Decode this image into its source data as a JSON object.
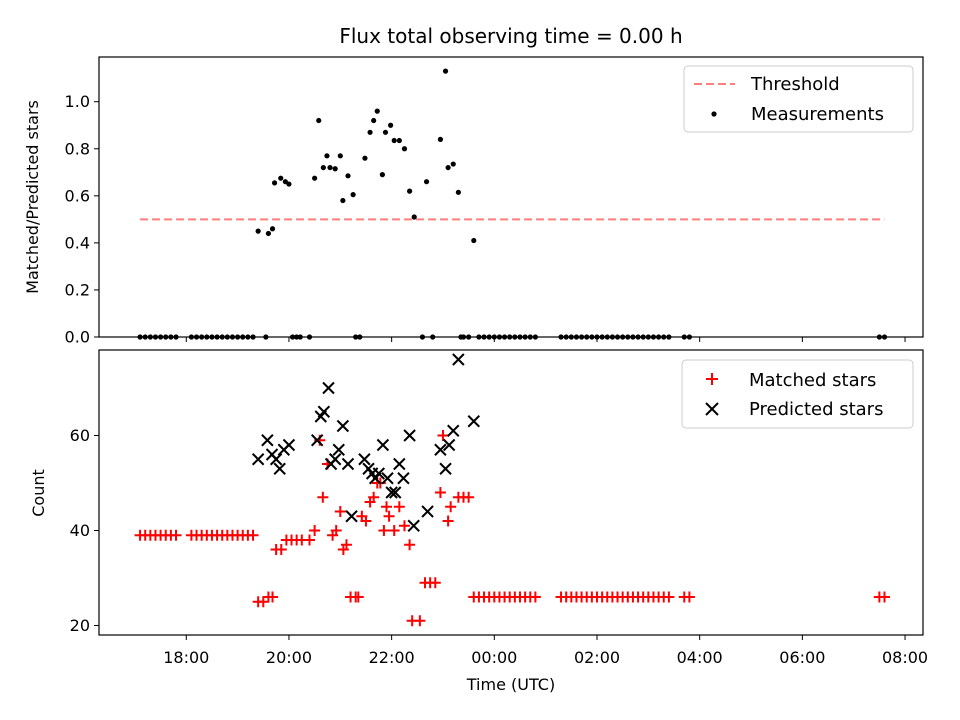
{
  "chart_data": [
    {
      "type": "scatter",
      "title": "Flux total observing time = 0.00 h",
      "xlabel": "",
      "ylabel": "Matched/Predicted stars",
      "xlim": [
        16.3,
        32.35
      ],
      "ylim": [
        0.0,
        1.19
      ],
      "yticks": [
        0.0,
        0.2,
        0.4,
        0.6,
        0.8,
        1.0
      ],
      "ytick_labels": [
        "0.0",
        "0.2",
        "0.4",
        "0.6",
        "0.8",
        "1.0"
      ],
      "legend_position": "upper right",
      "threshold": {
        "name": "Threshold",
        "value": 0.5,
        "x_range": [
          17.1,
          31.6
        ],
        "color": "#ff7f7f"
      },
      "series": [
        {
          "name": "Measurements",
          "color": "#000000",
          "marker": "dot",
          "points": [
            [
              17.1,
              0
            ],
            [
              17.2,
              0
            ],
            [
              17.3,
              0
            ],
            [
              17.4,
              0
            ],
            [
              17.5,
              0
            ],
            [
              17.6,
              0
            ],
            [
              17.7,
              0
            ],
            [
              17.8,
              0
            ],
            [
              18.1,
              0
            ],
            [
              18.2,
              0
            ],
            [
              18.3,
              0
            ],
            [
              18.4,
              0
            ],
            [
              18.5,
              0
            ],
            [
              18.6,
              0
            ],
            [
              18.7,
              0
            ],
            [
              18.8,
              0
            ],
            [
              18.9,
              0
            ],
            [
              19.0,
              0
            ],
            [
              19.1,
              0
            ],
            [
              19.2,
              0
            ],
            [
              19.3,
              0
            ],
            [
              19.4,
              0.45
            ],
            [
              19.55,
              0
            ],
            [
              19.6,
              0.44
            ],
            [
              19.68,
              0.46
            ],
            [
              19.72,
              0.655
            ],
            [
              19.84,
              0.675
            ],
            [
              19.93,
              0.66
            ],
            [
              20.0,
              0.65
            ],
            [
              20.07,
              0
            ],
            [
              20.15,
              0
            ],
            [
              20.22,
              0
            ],
            [
              20.4,
              0
            ],
            [
              20.5,
              0.675
            ],
            [
              20.58,
              0.92
            ],
            [
              20.67,
              0.72
            ],
            [
              20.74,
              0.77
            ],
            [
              20.8,
              0.72
            ],
            [
              20.9,
              0.715
            ],
            [
              21.0,
              0.77
            ],
            [
              21.05,
              0.58
            ],
            [
              21.15,
              0.685
            ],
            [
              21.25,
              0.605
            ],
            [
              21.3,
              0
            ],
            [
              21.38,
              0
            ],
            [
              21.48,
              0.76
            ],
            [
              21.58,
              0.87
            ],
            [
              21.65,
              0.92
            ],
            [
              21.72,
              0.96
            ],
            [
              21.82,
              0.69
            ],
            [
              21.88,
              0.87
            ],
            [
              21.98,
              0.9
            ],
            [
              22.05,
              0.835
            ],
            [
              22.15,
              0.835
            ],
            [
              22.25,
              0.8
            ],
            [
              22.35,
              0.62
            ],
            [
              22.44,
              0.51
            ],
            [
              22.6,
              0
            ],
            [
              22.68,
              0.66
            ],
            [
              22.8,
              0
            ],
            [
              22.95,
              0.84
            ],
            [
              23.05,
              1.13
            ],
            [
              23.1,
              0.72
            ],
            [
              23.2,
              0.735
            ],
            [
              23.3,
              0.615
            ],
            [
              23.35,
              0
            ],
            [
              23.4,
              0
            ],
            [
              23.5,
              0
            ],
            [
              23.6,
              0.41
            ],
            [
              23.7,
              0
            ],
            [
              23.8,
              0
            ],
            [
              23.9,
              0
            ],
            [
              24.0,
              0
            ],
            [
              24.1,
              0
            ],
            [
              24.2,
              0
            ],
            [
              24.3,
              0
            ],
            [
              24.4,
              0
            ],
            [
              24.5,
              0
            ],
            [
              24.6,
              0
            ],
            [
              24.7,
              0
            ],
            [
              24.8,
              0
            ],
            [
              25.3,
              0
            ],
            [
              25.4,
              0
            ],
            [
              25.5,
              0
            ],
            [
              25.6,
              0
            ],
            [
              25.7,
              0
            ],
            [
              25.8,
              0
            ],
            [
              25.9,
              0
            ],
            [
              26.0,
              0
            ],
            [
              26.1,
              0
            ],
            [
              26.2,
              0
            ],
            [
              26.3,
              0
            ],
            [
              26.4,
              0
            ],
            [
              26.5,
              0
            ],
            [
              26.6,
              0
            ],
            [
              26.7,
              0
            ],
            [
              26.8,
              0
            ],
            [
              26.9,
              0
            ],
            [
              27.0,
              0
            ],
            [
              27.1,
              0
            ],
            [
              27.2,
              0
            ],
            [
              27.3,
              0
            ],
            [
              27.4,
              0
            ],
            [
              27.7,
              0
            ],
            [
              27.8,
              0
            ],
            [
              31.5,
              0
            ],
            [
              31.6,
              0
            ]
          ]
        }
      ]
    },
    {
      "type": "scatter",
      "title": "",
      "xlabel": "Time (UTC)",
      "ylabel": "Count",
      "xlim": [
        16.3,
        32.35
      ],
      "ylim": [
        18.0,
        78.0
      ],
      "yticks": [
        20,
        40,
        60
      ],
      "ytick_labels": [
        "20",
        "40",
        "60"
      ],
      "xticks": [
        18,
        20,
        22,
        24,
        26,
        28,
        30,
        32
      ],
      "xtick_labels": [
        "18:00",
        "20:00",
        "22:00",
        "00:00",
        "02:00",
        "04:00",
        "06:00",
        "08:00"
      ],
      "legend_position": "upper right",
      "series": [
        {
          "name": "Matched stars",
          "color": "#ff0000",
          "marker": "plus",
          "points": [
            [
              17.1,
              39
            ],
            [
              17.2,
              39
            ],
            [
              17.3,
              39
            ],
            [
              17.4,
              39
            ],
            [
              17.5,
              39
            ],
            [
              17.6,
              39
            ],
            [
              17.7,
              39
            ],
            [
              17.8,
              39
            ],
            [
              18.1,
              39
            ],
            [
              18.2,
              39
            ],
            [
              18.3,
              39
            ],
            [
              18.4,
              39
            ],
            [
              18.5,
              39
            ],
            [
              18.6,
              39
            ],
            [
              18.7,
              39
            ],
            [
              18.8,
              39
            ],
            [
              18.9,
              39
            ],
            [
              19.0,
              39
            ],
            [
              19.1,
              39
            ],
            [
              19.2,
              39
            ],
            [
              19.3,
              39
            ],
            [
              19.4,
              25
            ],
            [
              19.5,
              25
            ],
            [
              19.6,
              26
            ],
            [
              19.68,
              26
            ],
            [
              19.75,
              36
            ],
            [
              19.85,
              36
            ],
            [
              19.95,
              38
            ],
            [
              20.05,
              38
            ],
            [
              20.15,
              38
            ],
            [
              20.25,
              38
            ],
            [
              20.4,
              38
            ],
            [
              20.5,
              40
            ],
            [
              20.6,
              59
            ],
            [
              20.66,
              47
            ],
            [
              20.75,
              54
            ],
            [
              20.85,
              39
            ],
            [
              20.92,
              40
            ],
            [
              21.0,
              44
            ],
            [
              21.06,
              36
            ],
            [
              21.12,
              37
            ],
            [
              21.2,
              26
            ],
            [
              21.3,
              26
            ],
            [
              21.35,
              26
            ],
            [
              21.42,
              43
            ],
            [
              21.5,
              42
            ],
            [
              21.58,
              46
            ],
            [
              21.65,
              47
            ],
            [
              21.72,
              50
            ],
            [
              21.78,
              50
            ],
            [
              21.85,
              40
            ],
            [
              21.9,
              45
            ],
            [
              21.95,
              43
            ],
            [
              22.05,
              40
            ],
            [
              22.15,
              45
            ],
            [
              22.25,
              41
            ],
            [
              22.35,
              37
            ],
            [
              22.4,
              21
            ],
            [
              22.55,
              21
            ],
            [
              22.65,
              29
            ],
            [
              22.75,
              29
            ],
            [
              22.85,
              29
            ],
            [
              22.95,
              48
            ],
            [
              23.0,
              60
            ],
            [
              23.1,
              42
            ],
            [
              23.15,
              45
            ],
            [
              23.3,
              47
            ],
            [
              23.4,
              47
            ],
            [
              23.5,
              47
            ],
            [
              23.6,
              26
            ],
            [
              23.7,
              26
            ],
            [
              23.8,
              26
            ],
            [
              23.9,
              26
            ],
            [
              24.0,
              26
            ],
            [
              24.1,
              26
            ],
            [
              24.2,
              26
            ],
            [
              24.3,
              26
            ],
            [
              24.4,
              26
            ],
            [
              24.5,
              26
            ],
            [
              24.6,
              26
            ],
            [
              24.7,
              26
            ],
            [
              24.8,
              26
            ],
            [
              25.3,
              26
            ],
            [
              25.4,
              26
            ],
            [
              25.5,
              26
            ],
            [
              25.6,
              26
            ],
            [
              25.7,
              26
            ],
            [
              25.8,
              26
            ],
            [
              25.9,
              26
            ],
            [
              26.0,
              26
            ],
            [
              26.1,
              26
            ],
            [
              26.2,
              26
            ],
            [
              26.3,
              26
            ],
            [
              26.4,
              26
            ],
            [
              26.5,
              26
            ],
            [
              26.6,
              26
            ],
            [
              26.7,
              26
            ],
            [
              26.8,
              26
            ],
            [
              26.9,
              26
            ],
            [
              27.0,
              26
            ],
            [
              27.1,
              26
            ],
            [
              27.2,
              26
            ],
            [
              27.3,
              26
            ],
            [
              27.4,
              26
            ],
            [
              27.7,
              26
            ],
            [
              27.8,
              26
            ],
            [
              31.5,
              26
            ],
            [
              31.6,
              26
            ]
          ]
        },
        {
          "name": "Predicted stars",
          "color": "#000000",
          "marker": "x",
          "points": [
            [
              19.4,
              55
            ],
            [
              19.58,
              59
            ],
            [
              19.67,
              56
            ],
            [
              19.75,
              55
            ],
            [
              19.82,
              53
            ],
            [
              19.9,
              57
            ],
            [
              20.0,
              58
            ],
            [
              20.55,
              59
            ],
            [
              20.62,
              64
            ],
            [
              20.68,
              65
            ],
            [
              20.77,
              70
            ],
            [
              20.82,
              54
            ],
            [
              20.9,
              55
            ],
            [
              20.97,
              57
            ],
            [
              21.05,
              62
            ],
            [
              21.15,
              54
            ],
            [
              21.22,
              43
            ],
            [
              21.47,
              55
            ],
            [
              21.55,
              53
            ],
            [
              21.62,
              52
            ],
            [
              21.68,
              51
            ],
            [
              21.75,
              52
            ],
            [
              21.83,
              58
            ],
            [
              21.92,
              51
            ],
            [
              22.0,
              48
            ],
            [
              22.07,
              48
            ],
            [
              22.15,
              54
            ],
            [
              22.23,
              51
            ],
            [
              22.35,
              60
            ],
            [
              22.43,
              41
            ],
            [
              22.7,
              44
            ],
            [
              22.95,
              57
            ],
            [
              23.05,
              53
            ],
            [
              23.12,
              58
            ],
            [
              23.2,
              61
            ],
            [
              23.3,
              76
            ],
            [
              23.6,
              63
            ]
          ]
        }
      ]
    }
  ]
}
